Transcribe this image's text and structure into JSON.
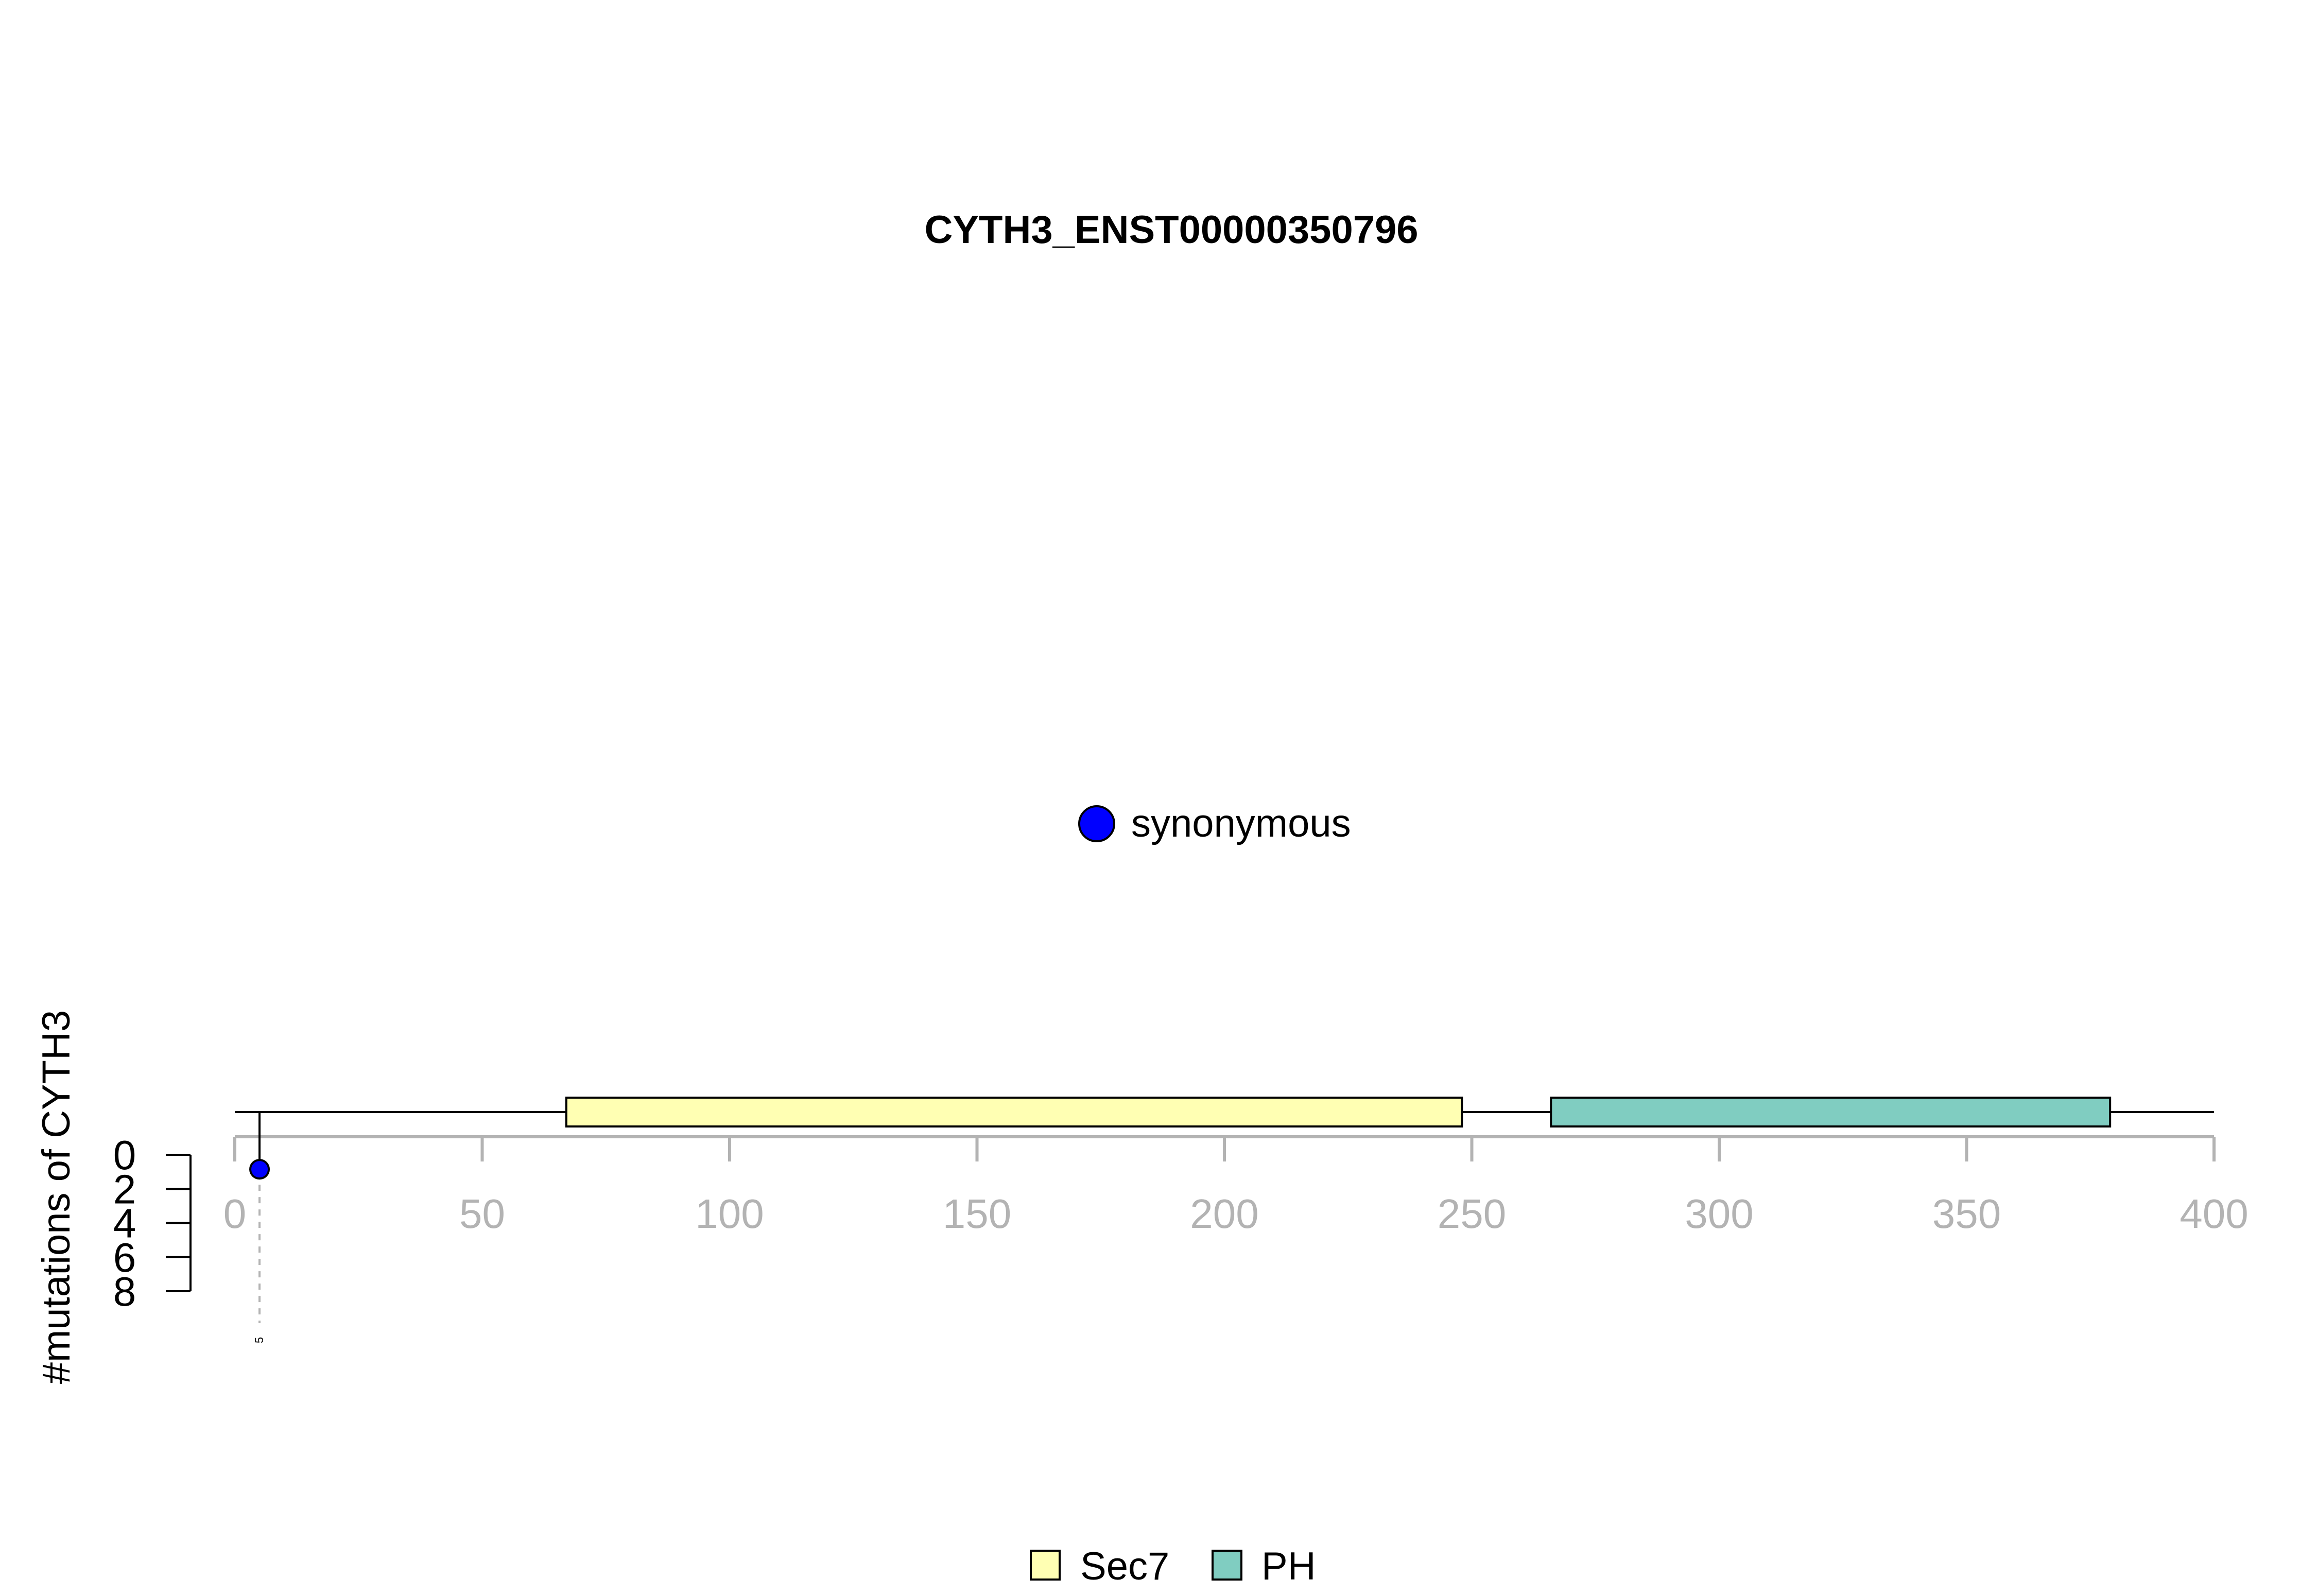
{
  "chart_data": {
    "type": "lollipop",
    "title": "CYTH3_ENST00000350796",
    "ylabel": "#mutations of CYTH3",
    "xlim": [
      0,
      400
    ],
    "xticks": [
      0,
      50,
      100,
      150,
      200,
      250,
      300,
      350,
      400
    ],
    "ylim": [
      0,
      8
    ],
    "yticks": [
      0,
      2,
      4,
      6,
      8
    ],
    "protein_length": 400,
    "domains": [
      {
        "name": "Sec7",
        "start": 67,
        "end": 248,
        "color": "#FFFFB3"
      },
      {
        "name": "PH",
        "start": 266,
        "end": 379,
        "color": "#80CDC1"
      }
    ],
    "mutations": [
      {
        "position": 5,
        "count": 1,
        "type": "synonymous",
        "label": "5",
        "color": "#0000FF"
      }
    ],
    "mutation_legend": [
      {
        "label": "synonymous",
        "color": "#0000FF"
      }
    ],
    "domain_legend": [
      {
        "label": "Sec7",
        "color": "#FFFFB3"
      },
      {
        "label": "PH",
        "color": "#80CDC1"
      }
    ]
  }
}
